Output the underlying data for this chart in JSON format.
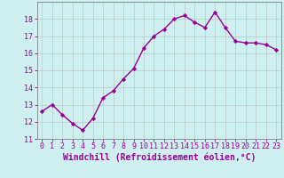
{
  "x": [
    0,
    1,
    2,
    3,
    4,
    5,
    6,
    7,
    8,
    9,
    10,
    11,
    12,
    13,
    14,
    15,
    16,
    17,
    18,
    19,
    20,
    21,
    22,
    23
  ],
  "y": [
    12.6,
    13.0,
    12.4,
    11.9,
    11.5,
    12.2,
    13.4,
    13.8,
    14.5,
    15.1,
    16.3,
    17.0,
    17.4,
    18.0,
    18.2,
    17.8,
    17.5,
    18.4,
    17.5,
    16.7,
    16.6,
    16.6,
    16.5,
    16.2
  ],
  "line_color": "#990099",
  "marker": "D",
  "markersize": 2.2,
  "linewidth": 1.0,
  "xlabel": "Windchill (Refroidissement éolien,°C)",
  "xlabel_fontsize": 7,
  "background_color": "#cff0f0",
  "grid_color": "#b0b0b0",
  "ylim": [
    11,
    19
  ],
  "xlim": [
    -0.5,
    23.5
  ],
  "yticks": [
    11,
    12,
    13,
    14,
    15,
    16,
    17,
    18
  ],
  "xticks": [
    0,
    1,
    2,
    3,
    4,
    5,
    6,
    7,
    8,
    9,
    10,
    11,
    12,
    13,
    14,
    15,
    16,
    17,
    18,
    19,
    20,
    21,
    22,
    23
  ],
  "tick_fontsize": 6,
  "spine_color": "#808080",
  "label_color": "#990099",
  "tick_color": "#990099"
}
